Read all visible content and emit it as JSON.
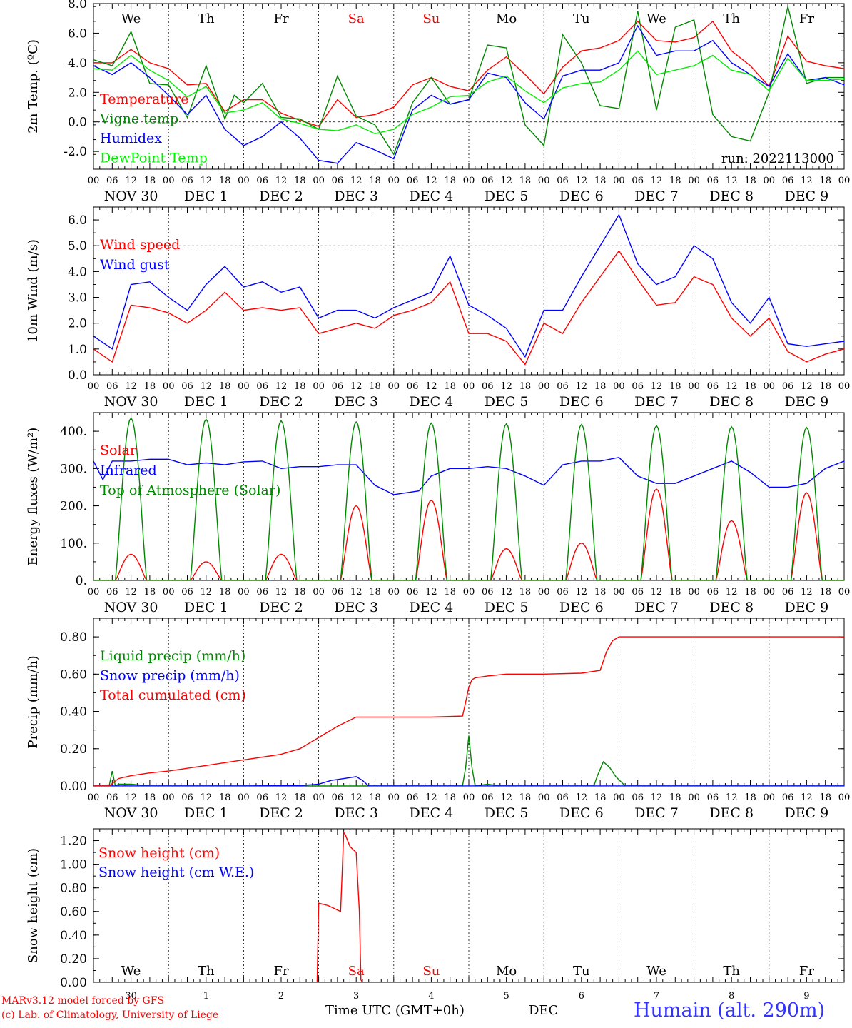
{
  "chart_data": [
    {
      "type": "line",
      "ylabel": "2m Temp. (ºC)",
      "ylim": [
        -3.2,
        8.0
      ],
      "yticks": [
        "8.0",
        "6.0",
        "4.0",
        "2.0",
        "0.0",
        "-2.0"
      ],
      "ytick_values": [
        8,
        6,
        4,
        2,
        0,
        -2
      ],
      "x_range_hours": [
        0,
        240
      ],
      "weekday_labels": [
        "We",
        "Th",
        "Fr",
        "Sa",
        "Su",
        "Mo",
        "Tu",
        "We",
        "Th",
        "Fr"
      ],
      "weekend_color": "#ff0000",
      "hlines": [
        0
      ],
      "annotation": "run: 2022113000",
      "legend": [
        "Temperature",
        "Vigne temp",
        "Humidex",
        "DewPoint Temp"
      ],
      "series": [
        {
          "name": "Temperature",
          "color": "#ff0000",
          "x": [
            0,
            6,
            12,
            18,
            24,
            30,
            36,
            42,
            48,
            54,
            60,
            66,
            72,
            78,
            84,
            90,
            96,
            102,
            108,
            114,
            120,
            126,
            132,
            138,
            144,
            150,
            156,
            162,
            168,
            174,
            180,
            186,
            192,
            198,
            204,
            210,
            216,
            222,
            228,
            234,
            240
          ],
          "y": [
            4.0,
            4.0,
            4.9,
            4.0,
            3.6,
            2.5,
            2.6,
            0.7,
            1.5,
            1.5,
            0.6,
            0.1,
            -0.3,
            1.5,
            0.3,
            0.5,
            1.0,
            2.5,
            3.0,
            2.4,
            2.1,
            3.5,
            4.4,
            3.2,
            1.9,
            3.7,
            4.8,
            5.0,
            5.5,
            6.8,
            5.5,
            5.4,
            5.7,
            6.8,
            4.8,
            3.8,
            2.4,
            5.8,
            4.1,
            3.8,
            3.6
          ]
        },
        {
          "name": "Vigne temp",
          "color": "#008800",
          "x": [
            0,
            6,
            9,
            12,
            18,
            24,
            30,
            36,
            42,
            45,
            48,
            54,
            60,
            66,
            72,
            78,
            84,
            90,
            96,
            102,
            108,
            114,
            120,
            126,
            132,
            138,
            144,
            150,
            156,
            162,
            168,
            174,
            180,
            186,
            192,
            198,
            204,
            210,
            216,
            222,
            228,
            234,
            240
          ],
          "y": [
            4.2,
            3.8,
            4.9,
            6.1,
            2.6,
            2.5,
            0.3,
            3.8,
            0.2,
            1.8,
            1.3,
            2.6,
            0.3,
            0.2,
            -0.5,
            3.1,
            0.4,
            -0.2,
            -2.2,
            1.3,
            3.0,
            1.2,
            1.5,
            5.2,
            5.0,
            -0.2,
            -1.6,
            5.9,
            4.0,
            1.1,
            0.9,
            7.5,
            0.8,
            6.4,
            6.9,
            0.5,
            -1.0,
            -1.3,
            2.0,
            7.8,
            2.6,
            3.0,
            3.0
          ]
        },
        {
          "name": "Humidex",
          "color": "#0000ff",
          "x": [
            0,
            6,
            12,
            18,
            24,
            30,
            36,
            42,
            48,
            54,
            60,
            66,
            72,
            78,
            84,
            90,
            96,
            102,
            108,
            114,
            120,
            126,
            132,
            138,
            144,
            150,
            156,
            162,
            168,
            174,
            180,
            186,
            192,
            198,
            204,
            210,
            216,
            222,
            228,
            234,
            240
          ],
          "y": [
            3.8,
            3.2,
            4.0,
            3.0,
            1.8,
            0.5,
            1.8,
            -0.5,
            -1.6,
            -1.0,
            0.0,
            -1.1,
            -2.6,
            -2.8,
            -1.4,
            -1.9,
            -2.5,
            0.8,
            1.8,
            1.2,
            1.5,
            3.3,
            3.0,
            1.3,
            0.2,
            3.1,
            3.5,
            3.5,
            4.0,
            6.5,
            4.5,
            4.8,
            4.8,
            5.5,
            4.0,
            3.2,
            2.4,
            4.6,
            2.8,
            3.0,
            2.5
          ]
        },
        {
          "name": "DewPoint Temp",
          "color": "#00ee00",
          "x": [
            0,
            6,
            12,
            18,
            24,
            30,
            36,
            42,
            48,
            54,
            60,
            66,
            72,
            78,
            84,
            90,
            96,
            102,
            108,
            114,
            120,
            126,
            132,
            138,
            144,
            150,
            156,
            162,
            168,
            174,
            180,
            186,
            192,
            198,
            204,
            210,
            216,
            222,
            228,
            234,
            240
          ],
          "y": [
            3.6,
            3.5,
            4.5,
            3.5,
            2.8,
            1.7,
            2.4,
            0.6,
            0.8,
            1.3,
            0.2,
            -0.1,
            -0.5,
            -0.6,
            -0.2,
            -0.8,
            -0.5,
            0.5,
            1.0,
            1.7,
            1.8,
            2.7,
            3.1,
            2.1,
            1.3,
            2.3,
            2.6,
            2.7,
            3.5,
            4.8,
            3.2,
            3.5,
            3.8,
            4.5,
            3.5,
            3.2,
            2.1,
            4.3,
            2.8,
            2.8,
            2.9
          ]
        }
      ]
    },
    {
      "type": "line",
      "ylabel": "10m Wind (m/s)",
      "ylim": [
        0,
        6.5
      ],
      "yticks": [
        "6.0",
        "5.0",
        "4.0",
        "3.0",
        "2.0",
        "1.0",
        "0.0"
      ],
      "ytick_values": [
        6,
        5,
        4,
        3,
        2,
        1,
        0
      ],
      "x_range_hours": [
        0,
        240
      ],
      "hlines": [
        5
      ],
      "legend": [
        "Wind speed",
        "Wind gust"
      ],
      "series": [
        {
          "name": "Wind speed",
          "color": "#ff0000",
          "x": [
            0,
            6,
            12,
            18,
            24,
            30,
            36,
            42,
            48,
            54,
            60,
            66,
            72,
            78,
            84,
            90,
            96,
            102,
            108,
            114,
            120,
            126,
            132,
            138,
            144,
            150,
            156,
            162,
            168,
            174,
            180,
            186,
            192,
            198,
            204,
            210,
            216,
            222,
            228,
            234,
            240
          ],
          "y": [
            1.0,
            0.5,
            2.7,
            2.6,
            2.4,
            2.0,
            2.5,
            3.2,
            2.5,
            2.6,
            2.5,
            2.6,
            1.6,
            1.8,
            2.0,
            1.8,
            2.3,
            2.5,
            2.8,
            3.6,
            1.6,
            1.6,
            1.3,
            0.4,
            2.0,
            1.6,
            2.8,
            3.8,
            4.8,
            3.7,
            2.7,
            2.8,
            3.8,
            3.5,
            2.2,
            1.5,
            2.2,
            0.9,
            0.5,
            0.8,
            1.0
          ]
        },
        {
          "name": "Wind gust",
          "color": "#0000ff",
          "x": [
            0,
            6,
            12,
            18,
            24,
            30,
            36,
            42,
            48,
            54,
            60,
            66,
            72,
            78,
            84,
            90,
            96,
            102,
            108,
            114,
            120,
            126,
            132,
            138,
            144,
            150,
            156,
            162,
            168,
            174,
            180,
            186,
            192,
            198,
            204,
            210,
            216,
            222,
            228,
            234,
            240
          ],
          "y": [
            1.5,
            1.0,
            3.5,
            3.6,
            3.0,
            2.5,
            3.5,
            4.2,
            3.4,
            3.6,
            3.2,
            3.4,
            2.2,
            2.5,
            2.5,
            2.2,
            2.6,
            2.9,
            3.2,
            4.6,
            2.7,
            2.3,
            1.8,
            0.7,
            2.5,
            2.5,
            3.8,
            5.0,
            6.2,
            4.3,
            3.5,
            3.8,
            5.0,
            4.5,
            2.8,
            2.0,
            3.0,
            1.2,
            1.1,
            1.2,
            1.3
          ]
        }
      ]
    },
    {
      "type": "line",
      "ylabel": "Energy fluxes (W/m²)",
      "ylim": [
        0,
        450
      ],
      "yticks": [
        "400.",
        "300.",
        "200.",
        "100.",
        "0."
      ],
      "ytick_values": [
        400,
        300,
        200,
        100,
        0
      ],
      "x_range_hours": [
        0,
        240
      ],
      "legend": [
        "Solar",
        "Infrared",
        "Top of Atmosphere (Solar)"
      ],
      "series": [
        {
          "name": "Solar",
          "color": "#ff0000",
          "kind": "diurnal",
          "daily_peaks": [
            70,
            50,
            70,
            200,
            215,
            85,
            100,
            245,
            160,
            235
          ]
        },
        {
          "name": "Infrared",
          "color": "#0000ff",
          "x": [
            0,
            3,
            6,
            12,
            18,
            24,
            30,
            36,
            42,
            48,
            54,
            60,
            66,
            72,
            78,
            84,
            90,
            96,
            100,
            104,
            108,
            114,
            120,
            126,
            132,
            138,
            144,
            150,
            156,
            162,
            168,
            174,
            180,
            186,
            192,
            198,
            204,
            210,
            216,
            222,
            228,
            234,
            240
          ],
          "y": [
            320,
            270,
            320,
            320,
            325,
            325,
            310,
            315,
            310,
            318,
            320,
            300,
            305,
            305,
            310,
            310,
            255,
            230,
            235,
            240,
            280,
            300,
            300,
            305,
            300,
            280,
            255,
            310,
            320,
            320,
            330,
            280,
            260,
            260,
            280,
            300,
            320,
            290,
            250,
            250,
            260,
            300,
            320
          ]
        },
        {
          "name": "Top of Atmosphere (Solar)",
          "color": "#008800",
          "kind": "diurnal",
          "daily_peaks": [
            435,
            432,
            428,
            425,
            422,
            420,
            418,
            415,
            412,
            410
          ]
        }
      ]
    },
    {
      "type": "line",
      "ylabel": "Precip (mm/h)",
      "ylim": [
        0,
        0.9
      ],
      "yticks": [
        "0.80",
        "0.60",
        "0.40",
        "0.20",
        "0.00"
      ],
      "ytick_values": [
        0.8,
        0.6,
        0.4,
        0.2,
        0.0
      ],
      "x_range_hours": [
        0,
        240
      ],
      "legend": [
        "Liquid precip (mm/h)",
        "Snow precip (mm/h)",
        "Total cumulated (cm)"
      ],
      "series": [
        {
          "name": "Liquid precip (mm/h)",
          "color": "#008800",
          "x": [
            0,
            5,
            6,
            7,
            8,
            12,
            18,
            24,
            48,
            60,
            72,
            96,
            118,
            119,
            120,
            121,
            122,
            126,
            130,
            160,
            161,
            163,
            165,
            167,
            170,
            240
          ],
          "y": [
            0,
            0,
            0.08,
            0,
            0.01,
            0.01,
            0.0,
            0.0,
            0.0,
            0.0,
            0.0,
            0.0,
            0.0,
            0.1,
            0.27,
            0.1,
            0.0,
            0.01,
            0.0,
            0.0,
            0.05,
            0.13,
            0.1,
            0.05,
            0.0,
            0.0
          ]
        },
        {
          "name": "Snow precip (mm/h)",
          "color": "#0000ff",
          "x": [
            0,
            24,
            48,
            66,
            72,
            76,
            80,
            84,
            86,
            88,
            240
          ],
          "y": [
            0,
            0.0,
            0.0,
            0.002,
            0.01,
            0.03,
            0.04,
            0.05,
            0.03,
            0.0,
            0.0
          ]
        },
        {
          "name": "Total cumulated (cm)",
          "color": "#ff0000",
          "x": [
            0,
            5,
            8,
            12,
            18,
            24,
            36,
            48,
            60,
            66,
            72,
            78,
            84,
            90,
            96,
            108,
            118,
            119,
            120,
            121,
            122,
            126,
            132,
            144,
            156,
            162,
            164,
            166,
            168,
            192,
            216,
            240
          ],
          "y": [
            0,
            0,
            0.04,
            0.055,
            0.07,
            0.08,
            0.11,
            0.14,
            0.17,
            0.2,
            0.26,
            0.32,
            0.37,
            0.37,
            0.37,
            0.37,
            0.375,
            0.45,
            0.53,
            0.57,
            0.58,
            0.59,
            0.6,
            0.6,
            0.605,
            0.62,
            0.72,
            0.78,
            0.8,
            0.8,
            0.8,
            0.8
          ]
        }
      ]
    },
    {
      "type": "line",
      "ylabel": "Snow height (cm)",
      "xlabel": "Time UTC (GMT+0h)",
      "month_label": "DEC",
      "ylim": [
        0,
        1.3
      ],
      "yticks": [
        "1.20",
        "1.00",
        "0.80",
        "0.60",
        "0.40",
        "0.20",
        "0.00"
      ],
      "ytick_values": [
        1.2,
        1.0,
        0.8,
        0.6,
        0.4,
        0.2,
        0.0
      ],
      "x_range_hours": [
        0,
        240
      ],
      "weekday_labels": [
        "We",
        "Th",
        "Fr",
        "Sa",
        "Su",
        "Mo",
        "Tu",
        "We",
        "Th",
        "Fr"
      ],
      "weekend_color": "#ff0000",
      "day_numbers": [
        "30",
        "1",
        "2",
        "3",
        "4",
        "5",
        "6",
        "7",
        "8",
        "9"
      ],
      "legend": [
        "Snow height (cm)",
        "Snow height (cm W.E.)"
      ],
      "series": [
        {
          "name": "Snow height (cm)",
          "color": "#ff0000",
          "x": [
            0,
            71.5,
            72,
            75,
            79,
            80,
            80.5,
            82,
            84,
            85,
            85.5,
            86,
            240
          ],
          "y": [
            0,
            0,
            0.67,
            0.65,
            0.6,
            1.27,
            1.25,
            1.15,
            1.1,
            0.6,
            0.02,
            0,
            0
          ]
        },
        {
          "name": "Snow height (cm W.E.)",
          "color": "#0000ff",
          "x": [
            0,
            240
          ],
          "y": [
            0,
            0
          ]
        }
      ]
    }
  ],
  "x_axis": {
    "hour_ticks": [
      "00",
      "06",
      "12",
      "18"
    ],
    "end_tick": "00",
    "date_labels": [
      "NOV 30",
      "DEC  1",
      "DEC  2",
      "DEC  3",
      "DEC  4",
      "DEC  5",
      "DEC  6",
      "DEC  7",
      "DEC  8",
      "DEC  9"
    ]
  },
  "footer": {
    "model_line": "MARv3.12 model forced by GFS",
    "credit_line": "(c) Lab. of Climatology, University of Liege",
    "station": "Humain (alt. 290m)",
    "model_color": "#ff0000",
    "station_color": "#3333ff"
  }
}
